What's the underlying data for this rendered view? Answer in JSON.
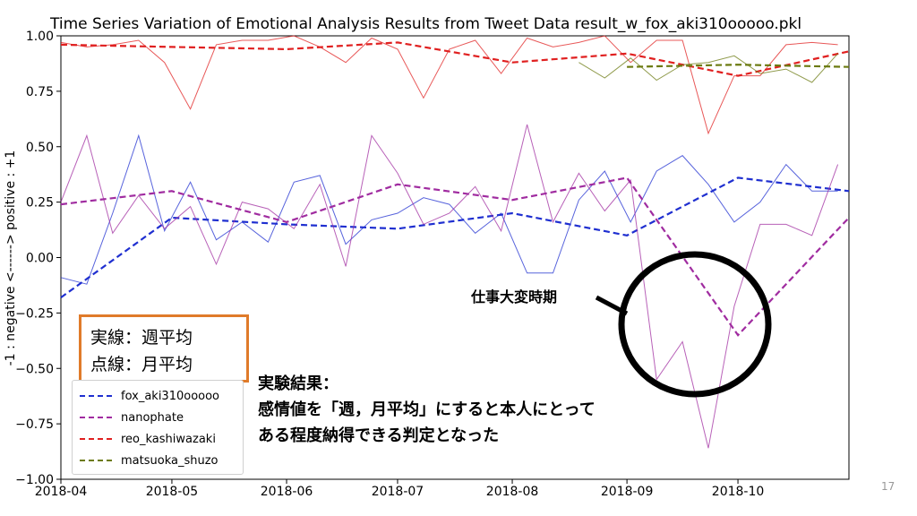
{
  "chart_data": {
    "type": "line",
    "title": "Time Series Variation of Emotional Analysis Results from Tweet Data result_w_fox_aki310ooooo.pkl",
    "xlabel": "",
    "ylabel": "-1 : negative <------> positive : +1",
    "ylim": [
      -1.0,
      1.0
    ],
    "xlim": [
      "2018-04-01",
      "2018-10-31"
    ],
    "xticks": [
      "2018-04",
      "2018-05",
      "2018-06",
      "2018-07",
      "2018-08",
      "2018-09",
      "2018-10"
    ],
    "xtick_dates": [
      "2018-04-01",
      "2018-05-01",
      "2018-06-01",
      "2018-07-01",
      "2018-08-01",
      "2018-09-01",
      "2018-10-01"
    ],
    "yticks": [
      "1.00",
      "0.75",
      "0.50",
      "0.25",
      "0.00",
      "−0.25",
      "−0.50",
      "−0.75",
      "−1.00"
    ],
    "ytick_values": [
      1.0,
      0.75,
      0.5,
      0.25,
      0.0,
      -0.25,
      -0.5,
      -0.75,
      -1.0
    ],
    "grid": false,
    "legend_position": "lower-left",
    "series": [
      {
        "name": "fox_aki310ooooo",
        "color": "#1f2fd0",
        "weekly": {
          "x": [
            "2018-04-01",
            "2018-04-08",
            "2018-04-15",
            "2018-04-22",
            "2018-04-29",
            "2018-05-06",
            "2018-05-13",
            "2018-05-20",
            "2018-05-27",
            "2018-06-03",
            "2018-06-10",
            "2018-06-17",
            "2018-06-24",
            "2018-07-01",
            "2018-07-08",
            "2018-07-15",
            "2018-07-22",
            "2018-07-29",
            "2018-08-05",
            "2018-08-12",
            "2018-08-19",
            "2018-08-26",
            "2018-09-02",
            "2018-09-09",
            "2018-09-16",
            "2018-09-23",
            "2018-09-30",
            "2018-10-07",
            "2018-10-14",
            "2018-10-21",
            "2018-10-28"
          ],
          "values": [
            -0.09,
            -0.12,
            0.2,
            0.55,
            0.12,
            0.34,
            0.08,
            0.16,
            0.07,
            0.34,
            0.37,
            0.06,
            0.17,
            0.2,
            0.27,
            0.24,
            0.11,
            0.2,
            -0.07,
            -0.07,
            0.26,
            0.39,
            0.16,
            0.39,
            0.46,
            0.33,
            0.16,
            0.25,
            0.42,
            0.3,
            0.3
          ]
        },
        "monthly": {
          "x": [
            "2018-04-01",
            "2018-05-01",
            "2018-06-01",
            "2018-07-01",
            "2018-08-01",
            "2018-09-01",
            "2018-10-01",
            "2018-10-31"
          ],
          "values": [
            -0.18,
            0.18,
            0.15,
            0.13,
            0.2,
            0.1,
            0.36,
            0.3
          ]
        }
      },
      {
        "name": "nanophate",
        "color": "#a02ca0",
        "weekly": {
          "x": [
            "2018-04-01",
            "2018-04-08",
            "2018-04-15",
            "2018-04-22",
            "2018-04-29",
            "2018-05-06",
            "2018-05-13",
            "2018-05-20",
            "2018-05-27",
            "2018-06-03",
            "2018-06-10",
            "2018-06-17",
            "2018-06-24",
            "2018-07-01",
            "2018-07-08",
            "2018-07-15",
            "2018-07-22",
            "2018-07-29",
            "2018-08-05",
            "2018-08-12",
            "2018-08-19",
            "2018-08-26",
            "2018-09-02",
            "2018-09-09",
            "2018-09-16",
            "2018-09-23",
            "2018-09-30",
            "2018-10-07",
            "2018-10-14",
            "2018-10-21",
            "2018-10-28"
          ],
          "values": [
            0.25,
            0.55,
            0.11,
            0.28,
            0.13,
            0.23,
            -0.03,
            0.25,
            0.22,
            0.13,
            0.33,
            -0.04,
            0.55,
            0.38,
            0.15,
            0.2,
            0.32,
            0.12,
            0.6,
            0.16,
            0.38,
            0.21,
            0.35,
            -0.55,
            -0.38,
            -0.86,
            -0.22,
            0.15,
            0.15,
            0.1,
            0.42
          ]
        },
        "monthly": {
          "x": [
            "2018-04-01",
            "2018-05-01",
            "2018-06-01",
            "2018-07-01",
            "2018-08-01",
            "2018-09-01",
            "2018-10-01",
            "2018-10-31"
          ],
          "values": [
            0.24,
            0.3,
            0.16,
            0.33,
            0.26,
            0.36,
            -0.35,
            0.18
          ]
        }
      },
      {
        "name": "reo_kashiwazaki",
        "color": "#e02020",
        "weekly": {
          "x": [
            "2018-04-01",
            "2018-04-08",
            "2018-04-15",
            "2018-04-22",
            "2018-04-29",
            "2018-05-06",
            "2018-05-13",
            "2018-05-20",
            "2018-05-27",
            "2018-06-03",
            "2018-06-10",
            "2018-06-17",
            "2018-06-24",
            "2018-07-01",
            "2018-07-08",
            "2018-07-15",
            "2018-07-22",
            "2018-07-29",
            "2018-08-05",
            "2018-08-12",
            "2018-08-19",
            "2018-08-26",
            "2018-09-02",
            "2018-09-09",
            "2018-09-16",
            "2018-09-23",
            "2018-09-30",
            "2018-10-07",
            "2018-10-14",
            "2018-10-21",
            "2018-10-28"
          ],
          "values": [
            0.97,
            0.95,
            0.96,
            0.98,
            0.88,
            0.67,
            0.96,
            0.98,
            0.98,
            1.0,
            0.95,
            0.88,
            0.99,
            0.94,
            0.72,
            0.94,
            0.98,
            0.83,
            0.99,
            0.95,
            0.97,
            1.0,
            0.88,
            0.98,
            0.98,
            0.56,
            0.82,
            0.82,
            0.96,
            0.97,
            0.96
          ]
        },
        "monthly": {
          "x": [
            "2018-04-01",
            "2018-05-01",
            "2018-06-01",
            "2018-07-01",
            "2018-08-01",
            "2018-09-01",
            "2018-10-01",
            "2018-10-31"
          ],
          "values": [
            0.96,
            0.95,
            0.94,
            0.97,
            0.88,
            0.92,
            0.82,
            0.93
          ]
        }
      },
      {
        "name": "matsuoka_shuzo",
        "color": "#6b7a10",
        "weekly": {
          "x": [
            "2018-08-19",
            "2018-08-26",
            "2018-09-02",
            "2018-09-09",
            "2018-09-16",
            "2018-09-23",
            "2018-09-30",
            "2018-10-07",
            "2018-10-14",
            "2018-10-21",
            "2018-10-28"
          ],
          "values": [
            0.88,
            0.81,
            0.9,
            0.8,
            0.87,
            0.88,
            0.91,
            0.83,
            0.85,
            0.79,
            0.92
          ]
        },
        "monthly": {
          "x": [
            "2018-09-01",
            "2018-10-01",
            "2018-10-31"
          ],
          "values": [
            0.86,
            0.87,
            0.86
          ]
        }
      }
    ]
  },
  "note_box": {
    "line1": "実線：週平均",
    "line2": "点線：月平均",
    "border_color": "#e07b2a"
  },
  "annotations": {
    "result_line1": "実験結果：",
    "result_line2": "感情値を「週，月平均」にすると本人にとって",
    "result_line3": "ある程度納得できる判定となった",
    "busy_label": "仕事大変時期"
  },
  "page_number": "17"
}
